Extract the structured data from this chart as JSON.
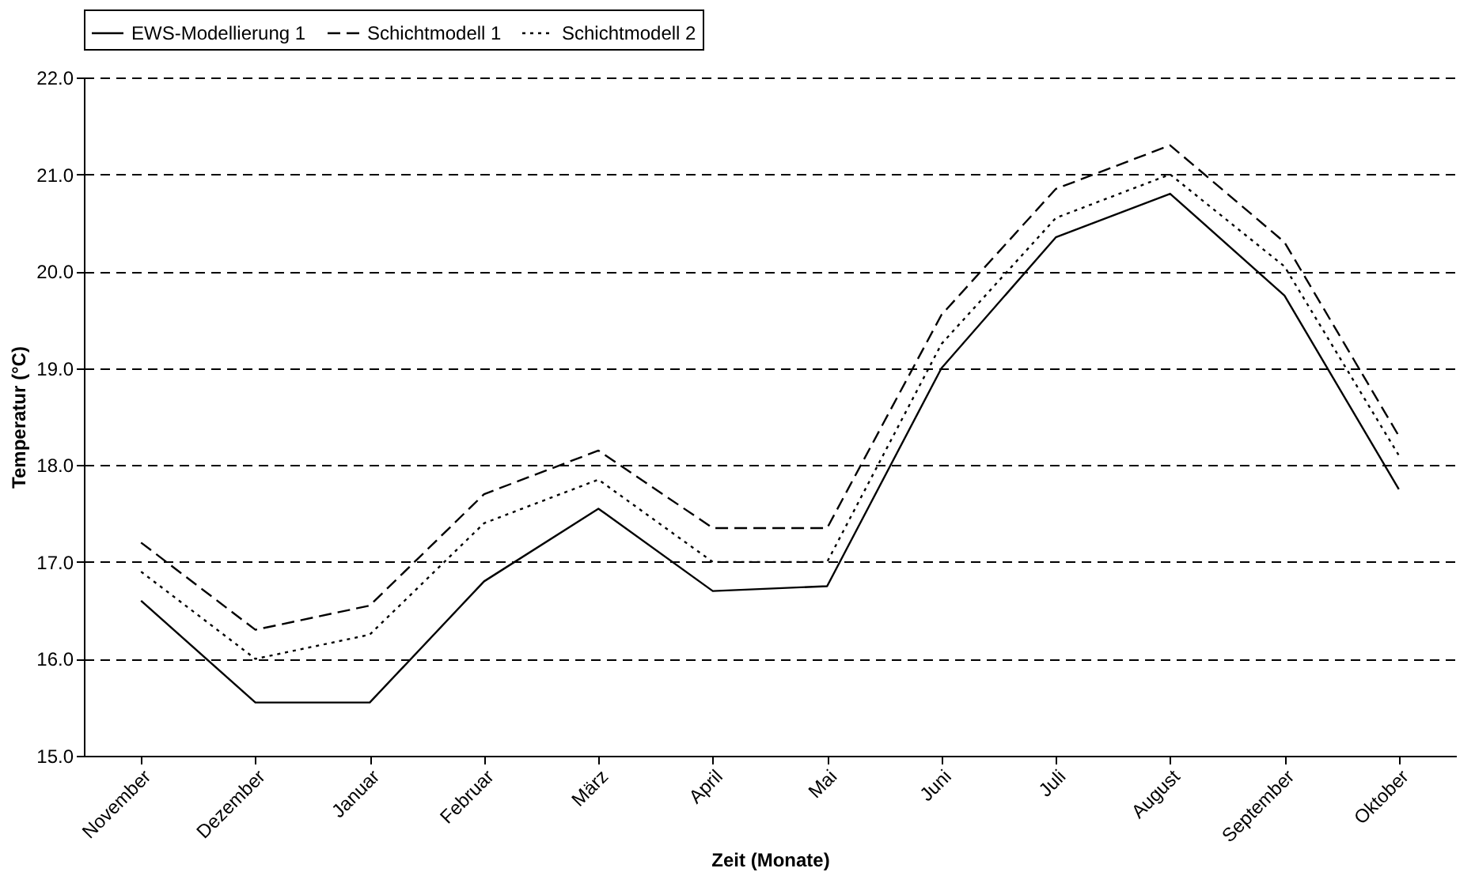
{
  "chart_data": {
    "type": "line",
    "xlabel": "Zeit (Monate)",
    "ylabel": "Temperatur (°C)",
    "categories": [
      "November",
      "Dezember",
      "Januar",
      "Februar",
      "März",
      "April",
      "Mai",
      "Juni",
      "Juli",
      "August",
      "September",
      "Oktober"
    ],
    "series": [
      {
        "name": "EWS-Modellierung 1",
        "color": "#000000",
        "line_style": "solid",
        "values": [
          16.6,
          15.55,
          15.55,
          16.8,
          17.55,
          16.7,
          16.75,
          19.0,
          20.35,
          20.8,
          19.75,
          17.75
        ]
      },
      {
        "name": "Schichtmodell 1",
        "color": "#000000",
        "line_style": "dashed",
        "values": [
          17.2,
          16.3,
          16.55,
          17.7,
          18.15,
          17.35,
          17.35,
          19.55,
          20.85,
          21.3,
          20.3,
          18.3
        ]
      },
      {
        "name": "Schichtmodell 2",
        "color": "#000000",
        "line_style": "dotted",
        "values": [
          16.9,
          16.0,
          16.25,
          17.4,
          17.85,
          17.0,
          17.0,
          19.25,
          20.55,
          21.0,
          20.05,
          18.1
        ]
      }
    ],
    "ylim": [
      15.0,
      22.0
    ],
    "yticks": [
      {
        "value": 15,
        "label": "15.0"
      },
      {
        "value": 16,
        "label": "16.0"
      },
      {
        "value": 17,
        "label": "17.0"
      },
      {
        "value": 18,
        "label": "18.0"
      },
      {
        "value": 19,
        "label": "19.0"
      },
      {
        "value": 20,
        "label": "20.0"
      },
      {
        "value": 21,
        "label": "21.0"
      },
      {
        "value": 22,
        "label": "22.0"
      }
    ],
    "grid": "y",
    "legend": "top",
    "marker": "none"
  }
}
